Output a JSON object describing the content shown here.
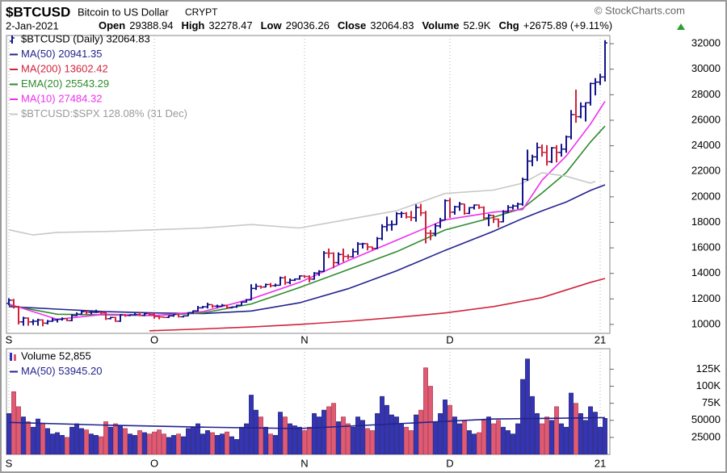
{
  "header": {
    "symbol": "$BTCUSD",
    "name": "Bitcoin to US Dollar",
    "exchange": "CRYPT",
    "copyright": "© StockCharts.com",
    "date": "2-Jan-2021",
    "stats": [
      {
        "label": "Open",
        "value": 29388.94
      },
      {
        "label": "High",
        "value": 32278.47
      },
      {
        "label": "Low",
        "value": 29036.26
      },
      {
        "label": "Close",
        "value": 32064.83
      },
      {
        "label": "Volume",
        "value": "52.9K"
      },
      {
        "label": "Chg",
        "value": "+2675.89 (+9.11%)"
      }
    ]
  },
  "chart_data": [
    {
      "type": "ohlc",
      "name": "$BTCUSD (Daily) 32064.83",
      "up_color": "#14148c",
      "down_color": "#d0243c",
      "xlim": [
        -0.5,
        124
      ],
      "xticks": [
        {
          "value": 0,
          "label": "S"
        },
        {
          "value": 30,
          "label": "O"
        },
        {
          "value": 61,
          "label": "N"
        },
        {
          "value": 91,
          "label": "D"
        },
        {
          "value": 122,
          "label": "21"
        }
      ],
      "ylim": [
        9300,
        32640
      ],
      "yticks": [
        10000,
        12000,
        14000,
        16000,
        18000,
        20000,
        22000,
        24000,
        26000,
        28000,
        30000,
        32000
      ],
      "y3lim": [
        40,
        212.5
      ],
      "grid": true,
      "ohlc": [
        [
          11650,
          12050,
          11500,
          11900
        ],
        [
          11900,
          12000,
          11250,
          11400
        ],
        [
          11400,
          11450,
          10000,
          10200
        ],
        [
          10200,
          10600,
          9900,
          10500
        ],
        [
          10500,
          10550,
          9900,
          10200
        ],
        [
          10200,
          10400,
          9950,
          10250
        ],
        [
          10250,
          10450,
          9900,
          10350
        ],
        [
          10350,
          10400,
          9850,
          10100
        ],
        [
          10100,
          10350,
          10000,
          10250
        ],
        [
          10250,
          10500,
          10200,
          10350
        ],
        [
          10350,
          10450,
          10150,
          10400
        ],
        [
          10400,
          10550,
          10300,
          10450
        ],
        [
          10450,
          10500,
          10250,
          10300
        ],
        [
          10300,
          10800,
          10250,
          10700
        ],
        [
          10700,
          10950,
          10650,
          10800
        ],
        [
          10800,
          11100,
          10750,
          11000
        ],
        [
          11000,
          11050,
          10800,
          10950
        ],
        [
          10950,
          11050,
          10800,
          10950
        ],
        [
          10950,
          11150,
          10900,
          10950
        ],
        [
          10950,
          11000,
          10800,
          10900
        ],
        [
          10900,
          10950,
          10350,
          10450
        ],
        [
          10450,
          10600,
          10400,
          10550
        ],
        [
          10550,
          10600,
          10200,
          10250
        ],
        [
          10250,
          10800,
          10200,
          10750
        ],
        [
          10750,
          10800,
          10600,
          10700
        ],
        [
          10700,
          10800,
          10650,
          10750
        ],
        [
          10750,
          10900,
          10700,
          10780
        ],
        [
          10780,
          10950,
          10650,
          10700
        ],
        [
          10700,
          10900,
          10650,
          10850
        ],
        [
          10850,
          10900,
          10700,
          10780
        ],
        [
          10780,
          10900,
          10450,
          10620
        ],
        [
          10620,
          10650,
          10400,
          10580
        ],
        [
          10580,
          10600,
          10500,
          10550
        ],
        [
          10550,
          10700,
          10500,
          10670
        ],
        [
          10670,
          10800,
          10600,
          10790
        ],
        [
          10790,
          10800,
          10550,
          10600
        ],
        [
          10600,
          10700,
          10550,
          10670
        ],
        [
          10670,
          10950,
          10650,
          10920
        ],
        [
          10920,
          11100,
          10850,
          11060
        ],
        [
          11060,
          11450,
          11000,
          11300
        ],
        [
          11300,
          11450,
          11250,
          11380
        ],
        [
          11380,
          11700,
          11250,
          11550
        ],
        [
          11550,
          11560,
          11300,
          11430
        ],
        [
          11430,
          11550,
          11300,
          11430
        ],
        [
          11430,
          11600,
          11400,
          11500
        ],
        [
          11500,
          11550,
          11250,
          11330
        ],
        [
          11330,
          11400,
          11250,
          11370
        ],
        [
          11370,
          11550,
          11300,
          11500
        ],
        [
          11500,
          11800,
          11450,
          11750
        ],
        [
          11750,
          12000,
          11700,
          11920
        ],
        [
          11920,
          13150,
          11900,
          12820
        ],
        [
          12820,
          13200,
          12700,
          12990
        ],
        [
          12990,
          13050,
          12800,
          12930
        ],
        [
          12930,
          13200,
          12900,
          13130
        ],
        [
          13130,
          13250,
          12900,
          13040
        ],
        [
          13040,
          13200,
          12950,
          13070
        ],
        [
          13070,
          13750,
          13050,
          13650
        ],
        [
          13650,
          13800,
          13100,
          13280
        ],
        [
          13280,
          13600,
          13150,
          13460
        ],
        [
          13460,
          13600,
          13400,
          13560
        ],
        [
          13560,
          13850,
          13500,
          13800
        ],
        [
          13800,
          13850,
          13650,
          13760
        ],
        [
          13760,
          13850,
          13300,
          13550
        ],
        [
          13550,
          14100,
          13500,
          14020
        ],
        [
          14020,
          14250,
          13800,
          14150
        ],
        [
          14150,
          15750,
          14100,
          15590
        ],
        [
          15590,
          15950,
          15200,
          15580
        ],
        [
          15580,
          15650,
          14400,
          14840
        ],
        [
          14840,
          15650,
          14700,
          15480
        ],
        [
          15480,
          15950,
          14900,
          15330
        ],
        [
          15330,
          15500,
          15100,
          15300
        ],
        [
          15300,
          15950,
          15250,
          15700
        ],
        [
          15700,
          16450,
          15450,
          16300
        ],
        [
          16300,
          16400,
          15950,
          16330
        ],
        [
          16330,
          16350,
          15800,
          16070
        ],
        [
          16070,
          16100,
          15850,
          15960
        ],
        [
          15960,
          16850,
          15900,
          16730
        ],
        [
          16730,
          17850,
          16600,
          17660
        ],
        [
          17660,
          18450,
          17300,
          17800
        ],
        [
          17800,
          18150,
          17350,
          17820
        ],
        [
          17820,
          18800,
          17800,
          18680
        ],
        [
          18680,
          18850,
          18350,
          18700
        ],
        [
          18700,
          18800,
          18300,
          18420
        ],
        [
          18420,
          18900,
          18100,
          18370
        ],
        [
          18370,
          19400,
          18050,
          19160
        ],
        [
          19160,
          19450,
          18500,
          18740
        ],
        [
          18740,
          18900,
          16350,
          17150
        ],
        [
          17150,
          17400,
          16600,
          17140
        ],
        [
          17140,
          17900,
          16900,
          17720
        ],
        [
          17720,
          18350,
          17550,
          18180
        ],
        [
          18180,
          19800,
          18150,
          19700
        ],
        [
          19700,
          19900,
          18350,
          18800
        ],
        [
          18800,
          19300,
          18600,
          19220
        ],
        [
          19220,
          19600,
          18900,
          19440
        ],
        [
          19440,
          19450,
          18600,
          18700
        ],
        [
          18700,
          19200,
          18650,
          19150
        ],
        [
          19150,
          19400,
          19000,
          19360
        ],
        [
          19360,
          19400,
          19050,
          19170
        ],
        [
          19170,
          19250,
          18250,
          18340
        ],
        [
          18340,
          18650,
          17700,
          18550
        ],
        [
          18550,
          18600,
          17950,
          18250
        ],
        [
          18250,
          18300,
          17600,
          18040
        ],
        [
          18040,
          18950,
          18000,
          18810
        ],
        [
          18810,
          19350,
          18750,
          19170
        ],
        [
          19170,
          19400,
          19000,
          19280
        ],
        [
          19280,
          19550,
          19050,
          19430
        ],
        [
          19430,
          21500,
          19300,
          21360
        ],
        [
          21360,
          23700,
          21250,
          22800
        ],
        [
          22800,
          23300,
          22400,
          23130
        ],
        [
          23130,
          24250,
          22800,
          23870
        ],
        [
          23870,
          24100,
          23150,
          23480
        ],
        [
          23480,
          24050,
          22450,
          22750
        ],
        [
          22750,
          23900,
          22650,
          23840
        ],
        [
          23840,
          24050,
          22700,
          23480
        ],
        [
          23480,
          24150,
          23150,
          23740
        ],
        [
          23740,
          24800,
          23450,
          24700
        ],
        [
          24700,
          26800,
          24500,
          26440
        ],
        [
          26440,
          28400,
          25800,
          26280
        ],
        [
          26280,
          27400,
          26150,
          27080
        ],
        [
          27080,
          27400,
          25900,
          27370
        ],
        [
          27370,
          28950,
          27150,
          28880
        ],
        [
          28880,
          29300,
          27950,
          28990
        ],
        [
          28990,
          29650,
          28750,
          29390
        ],
        [
          29388.94,
          32278.47,
          29036.26,
          32064.83
        ]
      ],
      "series": [
        {
          "name": "MA(50) 20941.35",
          "color": "#23238e",
          "x": [
            0,
            10,
            20,
            30,
            40,
            50,
            60,
            70,
            80,
            90,
            100,
            106,
            110,
            115,
            120,
            123
          ],
          "values": [
            11400,
            11200,
            11000,
            10900,
            10850,
            11050,
            11700,
            12800,
            14200,
            15800,
            17300,
            18300,
            18900,
            19600,
            20500,
            20941.35
          ]
        },
        {
          "name": "MA(200) 13602.42",
          "color": "#d0243c",
          "x": [
            29,
            40,
            50,
            60,
            70,
            80,
            90,
            100,
            110,
            120,
            123
          ],
          "values": [
            9500,
            9650,
            9800,
            10000,
            10250,
            10550,
            10900,
            11400,
            12100,
            13300,
            13602.42
          ]
        },
        {
          "name": "EMA(20) 25543.29",
          "color": "#2e8b2e",
          "x": [
            0,
            10,
            20,
            30,
            40,
            50,
            60,
            70,
            80,
            90,
            100,
            106,
            110,
            115,
            120,
            123
          ],
          "values": [
            11500,
            10800,
            10750,
            10700,
            10900,
            11600,
            12900,
            14300,
            15700,
            17400,
            18400,
            19100,
            20300,
            21900,
            24300,
            25543.29
          ]
        },
        {
          "name": "MA(10) 27484.32",
          "color": "#ee30ee",
          "x": [
            0,
            10,
            20,
            30,
            40,
            50,
            60,
            70,
            80,
            90,
            100,
            106,
            110,
            115,
            120,
            123
          ],
          "values": [
            11600,
            10400,
            10800,
            10700,
            11000,
            12000,
            13300,
            15000,
            16600,
            18200,
            18800,
            19000,
            21300,
            23200,
            25700,
            27484.32
          ]
        },
        {
          "name": "$BTCUSD:$SPX 128.08% (31 Dec)",
          "color": "#c8c8c8",
          "axis": "y3",
          "x": [
            0,
            5,
            10,
            20,
            30,
            40,
            50,
            60,
            70,
            80,
            85,
            90,
            100,
            106,
            110,
            115,
            120,
            121
          ],
          "values": [
            100,
            97,
            98.5,
            99,
            100,
            101,
            103,
            101,
            106,
            111,
            116,
            121,
            123,
            127,
            133,
            131,
            127,
            128.08
          ]
        }
      ]
    },
    {
      "type": "bar",
      "name": "Volume 52,855",
      "up_color": "#3434b4",
      "down_color": "#e05a74",
      "xlim": [
        -0.5,
        124
      ],
      "xticks": [
        {
          "value": 0,
          "label": "S"
        },
        {
          "value": 30,
          "label": "O"
        },
        {
          "value": 61,
          "label": "N"
        },
        {
          "value": 91,
          "label": "D"
        },
        {
          "value": 122,
          "label": "21"
        }
      ],
      "ylim": [
        0,
        155000
      ],
      "yticks": [
        25000,
        50000,
        {
          "value": 75000,
          "label": "75K"
        },
        {
          "value": 100000,
          "label": "100K"
        },
        {
          "value": 125000,
          "label": "125K"
        }
      ],
      "grid": true,
      "values": [
        60000,
        92000,
        70000,
        55000,
        48000,
        40000,
        52000,
        45000,
        38000,
        30000,
        32000,
        28000,
        25000,
        40000,
        45000,
        38000,
        36000,
        30000,
        28000,
        26000,
        48000,
        40000,
        45000,
        42000,
        38000,
        30000,
        28000,
        35000,
        32000,
        30000,
        33000,
        36000,
        30000,
        25000,
        28000,
        30000,
        26000,
        38000,
        40000,
        45000,
        30000,
        35000,
        32000,
        28000,
        30000,
        33000,
        26000,
        22000,
        40000,
        45000,
        87000,
        65000,
        55000,
        40000,
        30000,
        28000,
        62000,
        55000,
        45000,
        42000,
        40000,
        35000,
        40000,
        60000,
        55000,
        65000,
        70000,
        75000,
        48000,
        55000,
        45000,
        40000,
        55000,
        50000,
        38000,
        35000,
        60000,
        85000,
        72000,
        58000,
        55000,
        45000,
        40000,
        35000,
        58000,
        65000,
        127000,
        100000,
        48000,
        60000,
        80000,
        72000,
        55000,
        45000,
        50000,
        35000,
        30000,
        32000,
        50000,
        55000,
        45000,
        50000,
        40000,
        35000,
        30000,
        45000,
        110000,
        140000,
        85000,
        60000,
        45000,
        55000,
        50000,
        70000,
        45000,
        40000,
        90000,
        75000,
        60000,
        50000,
        70000,
        62000,
        40000,
        52855
      ],
      "series": [
        {
          "name": "MA(50) 53945.20",
          "color": "#23238e",
          "x": [
            0,
            20,
            40,
            60,
            80,
            100,
            123
          ],
          "values": [
            47000,
            43000,
            40000,
            38000,
            45000,
            52000,
            53945.2
          ]
        }
      ]
    }
  ]
}
